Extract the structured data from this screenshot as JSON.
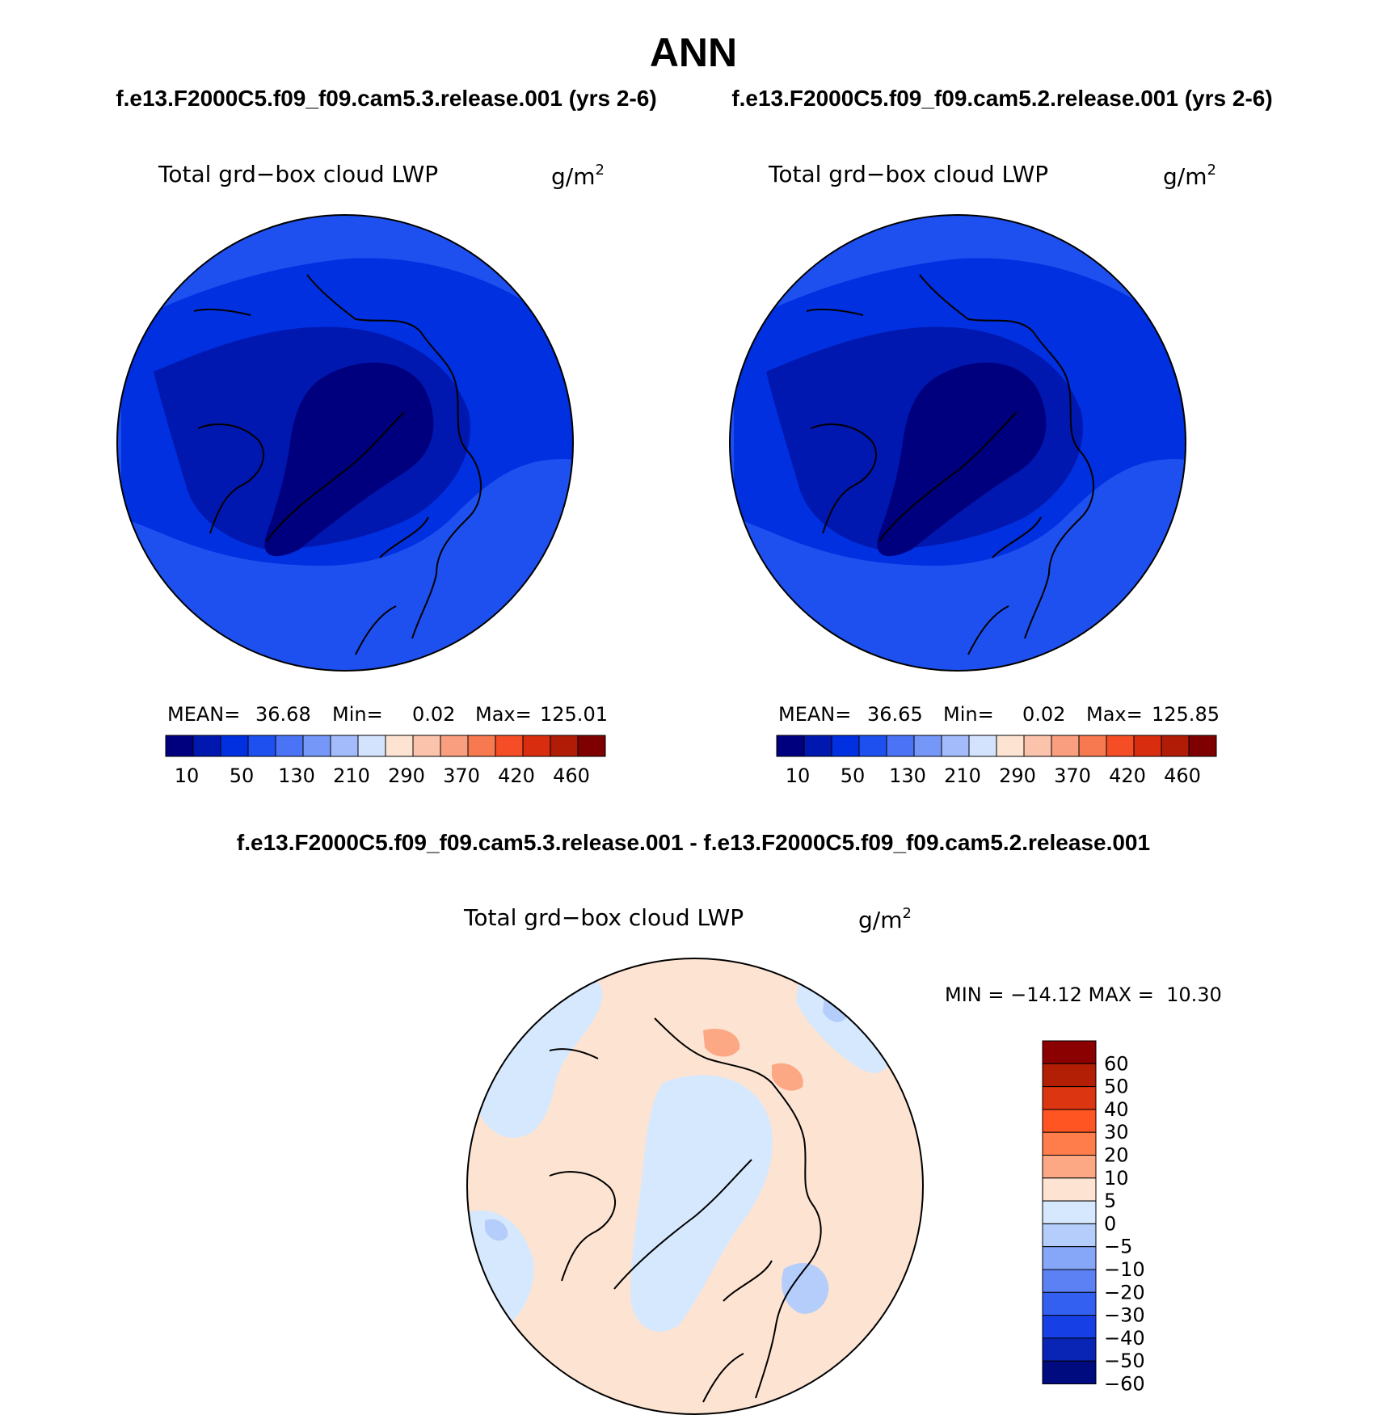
{
  "figure": {
    "title": "ANN",
    "subtitle_left": "f.e13.F2000C5.f09_f09.cam5.3.release.001 (yrs 2-6)",
    "subtitle_right": "f.e13.F2000C5.f09_f09.cam5.2.release.001 (yrs 2-6)",
    "diff_title": "f.e13.F2000C5.f09_f09.cam5.3.release.001 - f.e13.F2000C5.f09_f09.cam5.2.release.001"
  },
  "chart_data": [
    {
      "type": "heatmap",
      "projection": "north polar stereographic",
      "variable_label": "Total grd−box cloud LWP",
      "units": "g/m",
      "units_sup": "2",
      "stats": {
        "mean_label": "MEAN=",
        "mean": "36.68",
        "min_label": "Min=",
        "min": "0.02",
        "max_label": "Max=",
        "max": "125.01"
      },
      "colorbar": {
        "orientation": "horizontal",
        "tick_labels": [
          "10",
          "50",
          "130",
          "210",
          "290",
          "370",
          "420",
          "460"
        ],
        "colors": [
          "#00007f",
          "#0018b0",
          "#0030e0",
          "#1e50f0",
          "#4a73f5",
          "#7597f8",
          "#a3bbfb",
          "#d4e3fd",
          "#fde3d1",
          "#fbc3ac",
          "#f99e7e",
          "#f7794f",
          "#f54d26",
          "#d92d10",
          "#b01c05",
          "#7e0000"
        ]
      }
    },
    {
      "type": "heatmap",
      "projection": "north polar stereographic",
      "variable_label": "Total grd−box cloud LWP",
      "units": "g/m",
      "units_sup": "2",
      "stats": {
        "mean_label": "MEAN=",
        "mean": "36.65",
        "min_label": "Min=",
        "min": "0.02",
        "max_label": "Max=",
        "max": "125.85"
      },
      "colorbar": {
        "orientation": "horizontal",
        "tick_labels": [
          "10",
          "50",
          "130",
          "210",
          "290",
          "370",
          "420",
          "460"
        ],
        "colors": [
          "#00007f",
          "#0018b0",
          "#0030e0",
          "#1e50f0",
          "#4a73f5",
          "#7597f8",
          "#a3bbfb",
          "#d4e3fd",
          "#fde3d1",
          "#fbc3ac",
          "#f99e7e",
          "#f7794f",
          "#f54d26",
          "#d92d10",
          "#b01c05",
          "#7e0000"
        ]
      }
    },
    {
      "type": "heatmap",
      "projection": "north polar stereographic",
      "variable_label": "Total grd−box cloud LWP",
      "units": "g/m",
      "units_sup": "2",
      "stats": {
        "text": "MIN = −14.12 MAX =  10.30"
      },
      "colorbar": {
        "orientation": "vertical",
        "tick_labels": [
          "60",
          "50",
          "40",
          "30",
          "20",
          "10",
          "5",
          "0",
          "−5",
          "−10",
          "−20",
          "−30",
          "−40",
          "−50",
          "−60"
        ],
        "colors": [
          "#8b0000",
          "#b31f04",
          "#dc3511",
          "#ff5522",
          "#ff7d4a",
          "#fda885",
          "#fde3d2",
          "#d6e8fd",
          "#b4cdfb",
          "#86a6f7",
          "#5c81f4",
          "#3360f1",
          "#1640e6",
          "#0925b6",
          "#000b80"
        ]
      }
    }
  ]
}
